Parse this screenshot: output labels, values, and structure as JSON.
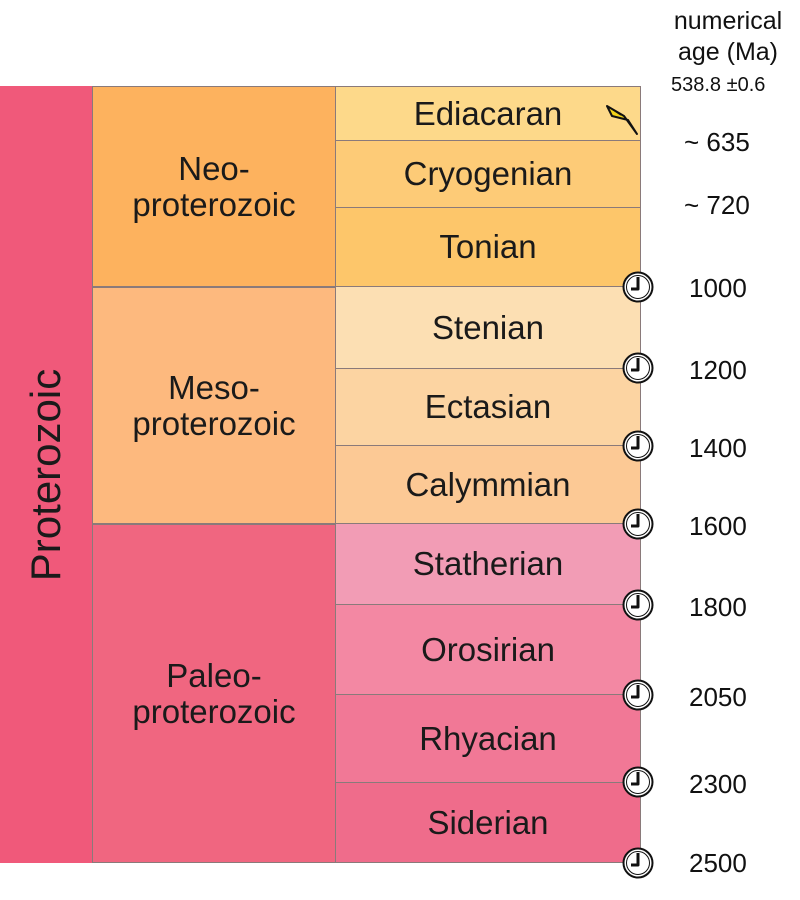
{
  "header": {
    "line1": "numerical",
    "line2": "age (Ma)",
    "top_age": "538.8 ±0.6"
  },
  "eon": {
    "label": "Proterozoic",
    "color": "#f0597a"
  },
  "eras": [
    {
      "label": "Neo-\nproterozoic",
      "color": "#fdb25e"
    },
    {
      "label": "Meso-\nproterozoic",
      "color": "#fdb97e"
    },
    {
      "label": "Paleo-\nproterozoic",
      "color": "#f06680"
    }
  ],
  "periods": [
    {
      "label": "Ediacaran",
      "color": "#fdd98a"
    },
    {
      "label": "Cryogenian",
      "color": "#fdcb77"
    },
    {
      "label": "Tonian",
      "color": "#fdc66a"
    },
    {
      "label": "Stenian",
      "color": "#fcdfb3"
    },
    {
      "label": "Ectasian",
      "color": "#fcd4a2"
    },
    {
      "label": "Calymmian",
      "color": "#fcc995"
    },
    {
      "label": "Statherian",
      "color": "#f29cb5"
    },
    {
      "label": "Orosirian",
      "color": "#f388a3"
    },
    {
      "label": "Rhyacian",
      "color": "#f17896"
    },
    {
      "label": "Siderian",
      "color": "#ef6c8b"
    }
  ],
  "boundary_ages": [
    "~ 635",
    "~ 720",
    "1000",
    "1200",
    "1400",
    "1600",
    "1800",
    "2050",
    "2300",
    "2500"
  ],
  "markers": {
    "gssp": "golden-spike-icon",
    "gssa": "clock-icon"
  }
}
